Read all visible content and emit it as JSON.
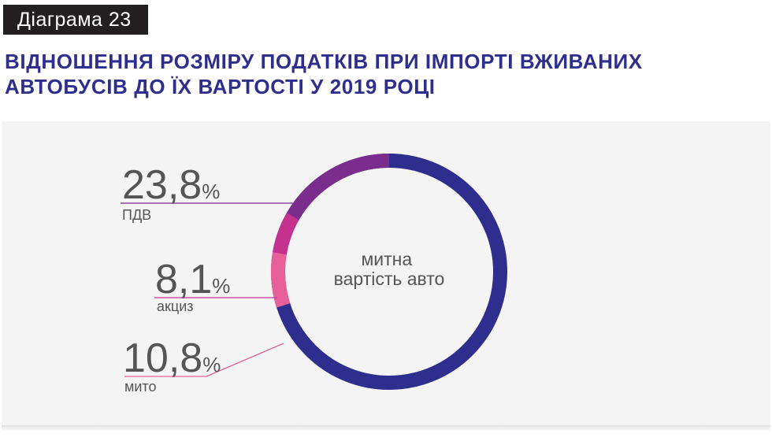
{
  "badge": "Діаграма 23",
  "title_lines": [
    "ВІДНОШЕННЯ РОЗМІРУ ПОДАТКІВ ПРИ ІМПОРТІ ВЖИВАНИХ",
    "АВТОБУСІВ ДО ЇХ ВАРТОСТІ У 2019 РОЦІ"
  ],
  "center_label_lines": [
    "митна",
    "вартість авто"
  ],
  "colors": {
    "title": "#2e2e8f",
    "base": "#2e2e8f",
    "pdv": "#7b2d8e",
    "akcyz": "#c5318f",
    "myto": "#e8609a",
    "text": "#555555"
  },
  "chart_data": {
    "type": "pie",
    "title": "ВІДНОШЕННЯ РОЗМІРУ ПОДАТКІВ ПРИ ІМПОРТІ ВЖИВАНИХ АВТОБУСІВ ДО ЇХ ВАРТОСТІ У 2019 РОЦІ",
    "center_label": "митна вартість авто",
    "slices": [
      {
        "label": "ПДВ",
        "value": 23.8,
        "display": "23,8",
        "unit": "%",
        "color": "#7b2d8e"
      },
      {
        "label": "акциз",
        "value": 8.1,
        "display": "8,1",
        "unit": "%",
        "color": "#c5318f"
      },
      {
        "label": "мито",
        "value": 10.8,
        "display": "10,8",
        "unit": "%",
        "color": "#e8609a"
      }
    ],
    "base": {
      "label": "митна вартість авто",
      "color": "#2e2e8f"
    }
  }
}
